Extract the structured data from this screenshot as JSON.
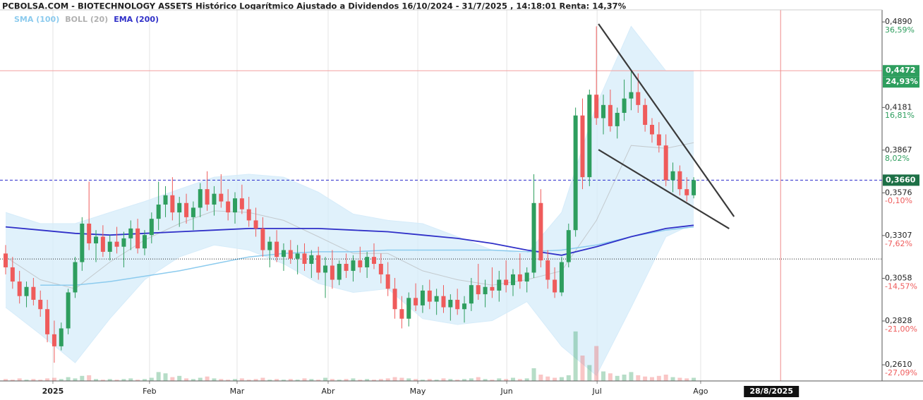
{
  "chart_data": {
    "type": "candlestick",
    "title": "PCBOLSA.COM - BIOTECHNOLOGY ASSETS Histórico Logarítmico Ajustado a Dividendos 16/10/2024 - 31/7/2025 , 14:18:01 Renta: 14,37%",
    "log_scale": true,
    "grid": "x",
    "up_color": "#2e9e5e",
    "down_color": "#ef5b5b",
    "pct_up_color": "#2e9e5e",
    "pct_down_color": "#ef5b5b",
    "xlim": [
      -0.81,
      126.1
    ],
    "ylim": [
      0.2534,
      0.4999
    ],
    "y2lim": [
      -29.22,
      39.64
    ],
    "xticks": [
      {
        "value": 6.8,
        "label": "2025"
      },
      {
        "value": 20.7,
        "label": "Feb"
      },
      {
        "value": 33.3,
        "label": "Mar"
      },
      {
        "value": 46.4,
        "label": "Abr"
      },
      {
        "value": 59.3,
        "label": "May"
      },
      {
        "value": 72.1,
        "label": "Jun"
      },
      {
        "value": 85.1,
        "label": "Jul"
      },
      {
        "value": 100,
        "label": "Ago"
      }
    ],
    "yticks": [
      {
        "value": 0.489,
        "label": "0,4890"
      },
      {
        "value": 0.4181,
        "label": "0,4181"
      },
      {
        "value": 0.3867,
        "label": "0,3867"
      },
      {
        "value": 0.3576,
        "label": "0,3576"
      },
      {
        "value": 0.3307,
        "label": "0,3307"
      },
      {
        "value": 0.3058,
        "label": "0,3058"
      },
      {
        "value": 0.2828,
        "label": "0,2828"
      },
      {
        "value": 0.261,
        "label": "0,2610"
      }
    ],
    "y2ticks": [
      {
        "value": 36.59,
        "label": "36,59%"
      },
      {
        "value": 16.81,
        "label": "16,81%"
      },
      {
        "value": 8.02,
        "label": "8,02%"
      },
      {
        "value": -0.1,
        "label": "-0,10%"
      },
      {
        "value": -7.62,
        "label": "-7,62%"
      },
      {
        "value": -14.57,
        "label": "-14,57%"
      },
      {
        "value": -21.0,
        "label": "-21,00%"
      },
      {
        "value": -27.09,
        "label": "-27,09%"
      }
    ],
    "candles": [
      [
        0.32,
        0.325,
        0.308,
        0.312
      ],
      [
        0.312,
        0.318,
        0.3,
        0.304
      ],
      [
        0.304,
        0.31,
        0.292,
        0.296
      ],
      [
        0.296,
        0.304,
        0.29,
        0.301
      ],
      [
        0.301,
        0.306,
        0.291,
        0.294
      ],
      [
        0.294,
        0.299,
        0.285,
        0.289
      ],
      [
        0.289,
        0.294,
        0.272,
        0.276
      ],
      [
        0.276,
        0.283,
        0.262,
        0.27
      ],
      [
        0.27,
        0.282,
        0.268,
        0.279
      ],
      [
        0.279,
        0.3,
        0.276,
        0.298
      ],
      [
        0.298,
        0.318,
        0.295,
        0.315
      ],
      [
        0.315,
        0.342,
        0.31,
        0.338
      ],
      [
        0.338,
        0.365,
        0.322,
        0.326
      ],
      [
        0.326,
        0.334,
        0.315,
        0.33
      ],
      [
        0.33,
        0.337,
        0.318,
        0.321
      ],
      [
        0.321,
        0.331,
        0.316,
        0.327
      ],
      [
        0.327,
        0.336,
        0.32,
        0.324
      ],
      [
        0.324,
        0.333,
        0.312,
        0.329
      ],
      [
        0.329,
        0.34,
        0.322,
        0.335
      ],
      [
        0.335,
        0.341,
        0.32,
        0.323
      ],
      [
        0.323,
        0.334,
        0.319,
        0.331
      ],
      [
        0.331,
        0.345,
        0.326,
        0.341
      ],
      [
        0.341,
        0.365,
        0.334,
        0.35
      ],
      [
        0.35,
        0.362,
        0.342,
        0.356
      ],
      [
        0.356,
        0.368,
        0.34,
        0.345
      ],
      [
        0.345,
        0.355,
        0.336,
        0.351
      ],
      [
        0.351,
        0.357,
        0.338,
        0.342
      ],
      [
        0.342,
        0.352,
        0.334,
        0.348
      ],
      [
        0.348,
        0.364,
        0.342,
        0.36
      ],
      [
        0.36,
        0.372,
        0.346,
        0.35
      ],
      [
        0.35,
        0.362,
        0.343,
        0.357
      ],
      [
        0.357,
        0.37,
        0.348,
        0.352
      ],
      [
        0.352,
        0.36,
        0.34,
        0.345
      ],
      [
        0.345,
        0.358,
        0.338,
        0.354
      ],
      [
        0.354,
        0.363,
        0.344,
        0.347
      ],
      [
        0.347,
        0.355,
        0.336,
        0.34
      ],
      [
        0.34,
        0.348,
        0.33,
        0.335
      ],
      [
        0.335,
        0.342,
        0.318,
        0.322
      ],
      [
        0.322,
        0.33,
        0.312,
        0.327
      ],
      [
        0.327,
        0.334,
        0.315,
        0.318
      ],
      [
        0.318,
        0.326,
        0.31,
        0.322
      ],
      [
        0.322,
        0.328,
        0.314,
        0.317
      ],
      [
        0.317,
        0.325,
        0.308,
        0.32
      ],
      [
        0.32,
        0.326,
        0.31,
        0.314
      ],
      [
        0.314,
        0.322,
        0.306,
        0.319
      ],
      [
        0.319,
        0.324,
        0.305,
        0.309
      ],
      [
        0.309,
        0.318,
        0.295,
        0.313
      ],
      [
        0.313,
        0.322,
        0.3,
        0.305
      ],
      [
        0.305,
        0.316,
        0.302,
        0.314
      ],
      [
        0.314,
        0.32,
        0.306,
        0.31
      ],
      [
        0.31,
        0.319,
        0.304,
        0.316
      ],
      [
        0.316,
        0.324,
        0.309,
        0.312
      ],
      [
        0.312,
        0.321,
        0.306,
        0.318
      ],
      [
        0.318,
        0.326,
        0.311,
        0.314
      ],
      [
        0.314,
        0.32,
        0.303,
        0.308
      ],
      [
        0.308,
        0.315,
        0.296,
        0.3
      ],
      [
        0.3,
        0.306,
        0.284,
        0.289
      ],
      [
        0.289,
        0.296,
        0.279,
        0.284
      ],
      [
        0.284,
        0.298,
        0.28,
        0.295
      ],
      [
        0.295,
        0.303,
        0.288,
        0.291
      ],
      [
        0.291,
        0.302,
        0.287,
        0.299
      ],
      [
        0.299,
        0.305,
        0.289,
        0.293
      ],
      [
        0.293,
        0.3,
        0.286,
        0.296
      ],
      [
        0.296,
        0.302,
        0.287,
        0.29
      ],
      [
        0.29,
        0.297,
        0.283,
        0.294
      ],
      [
        0.294,
        0.3,
        0.286,
        0.289
      ],
      [
        0.289,
        0.296,
        0.282,
        0.292
      ],
      [
        0.292,
        0.306,
        0.288,
        0.302
      ],
      [
        0.302,
        0.314,
        0.294,
        0.297
      ],
      [
        0.297,
        0.305,
        0.29,
        0.301
      ],
      [
        0.301,
        0.312,
        0.295,
        0.299
      ],
      [
        0.299,
        0.31,
        0.293,
        0.305
      ],
      [
        0.305,
        0.316,
        0.298,
        0.302
      ],
      [
        0.302,
        0.311,
        0.296,
        0.308
      ],
      [
        0.308,
        0.32,
        0.3,
        0.304
      ],
      [
        0.304,
        0.312,
        0.298,
        0.309
      ],
      [
        0.309,
        0.37,
        0.306,
        0.351
      ],
      [
        0.351,
        0.36,
        0.312,
        0.316
      ],
      [
        0.316,
        0.322,
        0.3,
        0.305
      ],
      [
        0.305,
        0.312,
        0.295,
        0.298
      ],
      [
        0.298,
        0.318,
        0.296,
        0.315
      ],
      [
        0.315,
        0.338,
        0.312,
        0.334
      ],
      [
        0.334,
        0.418,
        0.33,
        0.412
      ],
      [
        0.412,
        0.425,
        0.36,
        0.368
      ],
      [
        0.368,
        0.432,
        0.362,
        0.428
      ],
      [
        0.428,
        0.485,
        0.405,
        0.41
      ],
      [
        0.41,
        0.428,
        0.398,
        0.42
      ],
      [
        0.42,
        0.432,
        0.4,
        0.404
      ],
      [
        0.404,
        0.418,
        0.395,
        0.414
      ],
      [
        0.414,
        0.44,
        0.408,
        0.425
      ],
      [
        0.425,
        0.448,
        0.416,
        0.43
      ],
      [
        0.43,
        0.445,
        0.414,
        0.42
      ],
      [
        0.42,
        0.425,
        0.4,
        0.405
      ],
      [
        0.405,
        0.41,
        0.392,
        0.398
      ],
      [
        0.398,
        0.407,
        0.385,
        0.39
      ],
      [
        0.39,
        0.398,
        0.362,
        0.366
      ],
      [
        0.366,
        0.378,
        0.358,
        0.372
      ],
      [
        0.372,
        0.376,
        0.356,
        0.36
      ],
      [
        0.36,
        0.368,
        0.352,
        0.356
      ],
      [
        0.356,
        0.368,
        0.354,
        0.366
      ]
    ],
    "volumes": [
      3,
      2,
      4,
      2,
      3,
      2,
      4,
      5,
      3,
      6,
      4,
      8,
      9,
      3,
      2,
      3,
      2,
      3,
      4,
      2,
      3,
      5,
      14,
      12,
      6,
      8,
      4,
      3,
      5,
      7,
      4,
      3,
      2,
      3,
      4,
      2,
      3,
      5,
      2,
      3,
      2,
      3,
      2,
      4,
      3,
      2,
      5,
      3,
      2,
      3,
      4,
      2,
      3,
      2,
      3,
      4,
      6,
      5,
      4,
      3,
      2,
      3,
      2,
      4,
      3,
      2,
      3,
      4,
      6,
      3,
      2,
      4,
      3,
      5,
      3,
      4,
      20,
      10,
      7,
      5,
      6,
      9,
      78,
      40,
      25,
      55,
      15,
      12,
      8,
      10,
      14,
      9,
      7,
      6,
      8,
      10,
      6,
      5,
      4,
      5
    ],
    "line_x": [
      0,
      5,
      10,
      15,
      20,
      25,
      30,
      35,
      40,
      45,
      50,
      55,
      60,
      65,
      70,
      75,
      80,
      85,
      90,
      95,
      99
    ],
    "series": [
      {
        "name": "SMA (100)",
        "kind": "line",
        "color": "#8ccbee",
        "values": [
          null,
          0.302,
          0.302,
          0.304,
          0.307,
          0.31,
          0.314,
          0.318,
          0.32,
          0.321,
          0.321,
          0.322,
          0.322,
          0.322,
          0.322,
          0.321,
          0.322,
          0.325,
          0.33,
          0.334,
          0.336
        ]
      },
      {
        "name": "BOLL (20)",
        "kind": "band",
        "color": "#b0b0b0",
        "fill": "#d6ecfa",
        "upper": [
          0.345,
          0.338,
          0.338,
          0.345,
          0.352,
          0.36,
          0.368,
          0.37,
          0.368,
          0.358,
          0.344,
          0.34,
          0.338,
          0.33,
          0.322,
          0.32,
          0.345,
          0.42,
          0.485,
          0.447,
          0.447
        ],
        "values": [
          0.318,
          0.305,
          0.3,
          0.315,
          0.328,
          0.338,
          0.346,
          0.345,
          0.34,
          0.33,
          0.32,
          0.32,
          0.31,
          0.305,
          0.302,
          0.305,
          0.31,
          0.34,
          0.39,
          0.388,
          0.392
        ],
        "lower": [
          0.29,
          0.276,
          0.262,
          0.284,
          0.305,
          0.318,
          0.325,
          0.322,
          0.314,
          0.303,
          0.298,
          0.3,
          0.284,
          0.281,
          0.283,
          0.293,
          0.27,
          0.256,
          0.29,
          0.33,
          0.338
        ]
      },
      {
        "name": "EMA (200)",
        "kind": "line",
        "color": "#3030c8",
        "values": [
          0.336,
          0.334,
          0.332,
          0.331,
          0.332,
          0.333,
          0.334,
          0.335,
          0.335,
          0.335,
          0.334,
          0.333,
          0.331,
          0.329,
          0.326,
          0.322,
          0.319,
          0.324,
          0.33,
          0.335,
          0.337
        ]
      }
    ],
    "trendlines": [
      [
        85.3,
        0.4872,
        104.8,
        0.3424
      ],
      [
        85.3,
        0.387,
        104.1,
        0.3349
      ]
    ],
    "price_lines": [
      {
        "value": 0.4472,
        "label": "0,4472",
        "pct_value": 24.93,
        "pct_label": "24,93%",
        "color": "#f3a0a0",
        "style": "solid",
        "box": "#2e9e5e"
      },
      {
        "value": 0.366,
        "label": "0,3660",
        "color": "#2a2acc",
        "style": "dashed",
        "box": "#1d7046"
      }
    ],
    "reference_line": {
      "value": 0.3168,
      "color": "#222222",
      "style": "dotted"
    },
    "cursor": {
      "x": 111.5,
      "label": "28/8/2025",
      "color": "#f08a8a"
    }
  }
}
